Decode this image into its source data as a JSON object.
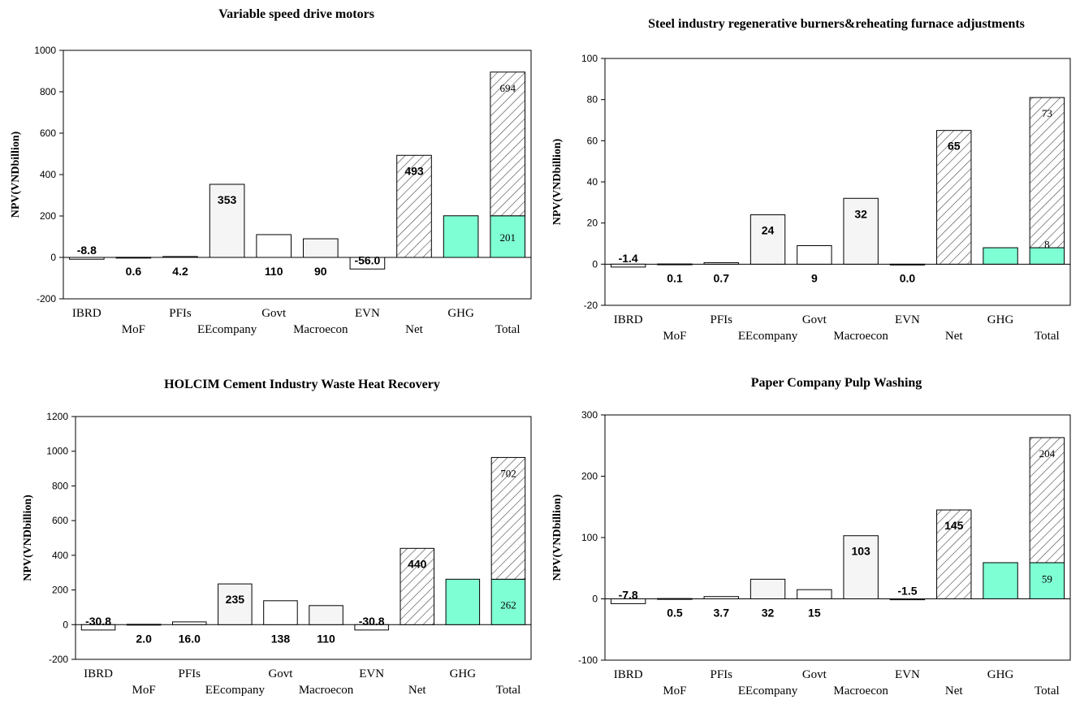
{
  "colors": {
    "ghg": "#7fffd4",
    "light_bar": "#f5f5f5",
    "hatch": "#444444"
  },
  "chart_data": [
    {
      "type": "bar",
      "title": "Variable speed drive motors",
      "ylabel": "NPV(VNDbillion)",
      "ylim": [
        -200,
        1000
      ],
      "yticks": [
        -200,
        0,
        200,
        400,
        600,
        800,
        1000
      ],
      "categories": [
        "IBRD",
        "MoF",
        "PFIs",
        "EEcompany",
        "Govt",
        "Macroecon",
        "EVN",
        "Net",
        "GHG",
        "Total"
      ],
      "values": [
        -8.8,
        0.6,
        4.2,
        353,
        110,
        90,
        -56.0,
        493,
        201,
        895
      ],
      "labels": [
        "-8.8",
        "0.6",
        "4.2",
        "353",
        "110",
        "90",
        "-56.0",
        "493",
        "",
        ""
      ],
      "total_stack": {
        "ghg": 201,
        "net": 694,
        "ghg_label": "201",
        "net_label": "694"
      }
    },
    {
      "type": "bar",
      "title": "Steel industry regenerative burners&reheating furnace adjustments",
      "ylabel": "NPV(VNDbillion)",
      "ylim": [
        -20,
        100
      ],
      "yticks": [
        -20,
        0,
        20,
        40,
        60,
        80,
        100
      ],
      "categories": [
        "IBRD",
        "MoF",
        "PFIs",
        "EEcompany",
        "Govt",
        "Macroecon",
        "EVN",
        "Net",
        "GHG",
        "Total"
      ],
      "values": [
        -1.4,
        0.1,
        0.7,
        24,
        9,
        32,
        0.0,
        65,
        8,
        81
      ],
      "labels": [
        "-1.4",
        "0.1",
        "0.7",
        "24",
        "9",
        "32",
        "0.0",
        "65",
        "",
        ""
      ],
      "total_stack": {
        "ghg": 8,
        "net": 73,
        "ghg_label": "8",
        "net_label": "73"
      }
    },
    {
      "type": "bar",
      "title": "HOLCIM Cement Industry Waste Heat Recovery",
      "ylabel": "NPV(VNDbillion)",
      "ylim": [
        -200,
        1200
      ],
      "yticks": [
        -200,
        0,
        200,
        400,
        600,
        800,
        1000,
        1200
      ],
      "categories": [
        "IBRD",
        "MoF",
        "PFIs",
        "EEcompany",
        "Govt",
        "Macroecon",
        "EVN",
        "Net",
        "GHG",
        "Total"
      ],
      "values": [
        -30.8,
        2.0,
        16.0,
        235,
        138,
        110,
        -30.8,
        440,
        262,
        964
      ],
      "labels": [
        "-30.8",
        "2.0",
        "16.0",
        "235",
        "138",
        "110",
        "-30.8",
        "440",
        "",
        ""
      ],
      "total_stack": {
        "ghg": 262,
        "net": 702,
        "ghg_label": "262",
        "net_label": "702"
      }
    },
    {
      "type": "bar",
      "title": "Paper Company Pulp Washing",
      "ylabel": "NPV(VNDbillion)",
      "ylim": [
        -100,
        300
      ],
      "yticks": [
        -100,
        0,
        100,
        200,
        300
      ],
      "categories": [
        "IBRD",
        "MoF",
        "PFIs",
        "EEcompany",
        "Govt",
        "Macroecon",
        "EVN",
        "Net",
        "GHG",
        "Total"
      ],
      "values": [
        -7.8,
        0.5,
        3.7,
        32,
        15,
        103,
        -1.5,
        145,
        59,
        263
      ],
      "labels": [
        "-7.8",
        "0.5",
        "3.7",
        "32",
        "15",
        "103",
        "-1.5",
        "145",
        "",
        ""
      ],
      "total_stack": {
        "ghg": 59,
        "net": 204,
        "ghg_label": "59",
        "net_label": "204"
      }
    }
  ]
}
